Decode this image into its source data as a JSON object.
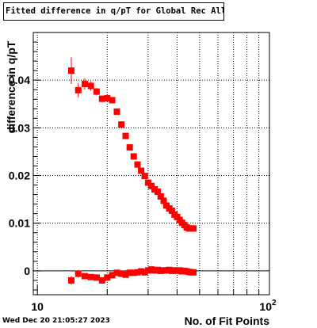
{
  "title": "Fitted difference in q/pT  for Global Rec All NoHits",
  "timestamp": "Wed Dec 20 21:05:27 2023",
  "chart_data": {
    "type": "scatter",
    "title": "Fitted difference in q/pT  for Global Rec All NoHits",
    "xlabel": "No. of Fit Points",
    "ylabel": "difference in q/pT",
    "x_scale": "log",
    "xlim": [
      9.6,
      100
    ],
    "ylim": [
      -0.005,
      0.05
    ],
    "x_tick_labels": [
      "10",
      "10^2"
    ],
    "y_tick_labels": [
      "0",
      "0.01",
      "0.02",
      "0.03",
      "0.04"
    ],
    "y_ticks": [
      0,
      0.01,
      0.02,
      0.03,
      0.04
    ],
    "grid": true,
    "legend": "none",
    "marker_color": "#ff0000",
    "series": [
      {
        "x": [
          14,
          15,
          16,
          17,
          18,
          19,
          20,
          21,
          22,
          23,
          24,
          25,
          26,
          27,
          28,
          29,
          30,
          31,
          32,
          33,
          34,
          35,
          36,
          37,
          38,
          39,
          40,
          41,
          42,
          43,
          44,
          45,
          46,
          47
        ],
        "y": [
          0.042,
          0.0379,
          0.0392,
          0.0388,
          0.0376,
          0.0361,
          0.0362,
          0.0358,
          0.0334,
          0.0307,
          0.0283,
          0.0259,
          0.024,
          0.0223,
          0.021,
          0.0199,
          0.0185,
          0.0178,
          0.0171,
          0.0166,
          0.0156,
          0.0147,
          0.0137,
          0.0131,
          0.0126,
          0.0118,
          0.0113,
          0.0107,
          0.0101,
          0.0096,
          0.0091,
          0.0089,
          0.0089,
          0.0089
        ],
        "yerr": [
          0.0028,
          0.0015,
          0.0012,
          0.001,
          0.0008,
          0.0007,
          0.0006,
          0.0005,
          0.0004,
          0.0004,
          0.0003,
          0.0003,
          0.0003,
          0.0003,
          0.0003,
          0.0003,
          0.0003,
          0.0003,
          0.0003,
          0.0003,
          0.0003,
          0.0003,
          0.0003,
          0.0003,
          0.0003,
          0.0003,
          0.0003,
          0.0003,
          0.0003,
          0.0003,
          0.0003,
          0.0003,
          0.0003,
          0.0003
        ]
      },
      {
        "x": [
          14,
          15,
          16,
          17,
          18,
          19,
          20,
          21,
          22,
          23,
          24,
          25,
          26,
          27,
          28,
          29,
          30,
          31,
          32,
          33,
          34,
          35,
          36,
          37,
          38,
          39,
          40,
          41,
          42,
          43,
          44,
          45,
          46,
          47
        ],
        "y": [
          -0.002,
          -0.0006,
          -0.0011,
          -0.0013,
          -0.0014,
          -0.002,
          -0.0014,
          -0.0009,
          -0.0004,
          -0.0006,
          -0.0008,
          -0.0004,
          -0.0004,
          -0.0003,
          -0.0001,
          -0.0003,
          0.0001,
          0.0003,
          0.0001,
          0.0002,
          0.0,
          0.0001,
          0.0001,
          0.0002,
          0.0,
          0.0001,
          0.0,
          0.0001,
          -0.0001,
          0.0,
          -0.0001,
          -0.0002,
          -0.0003,
          -0.0003
        ],
        "yerr": [
          0.0009,
          0.0008,
          0.0006,
          0.0005,
          0.0005,
          0.0005,
          0.0004,
          0.0004,
          0.0003,
          0.0003,
          0.0003,
          0.0003,
          0.0003,
          0.0003,
          0.0003,
          0.0003,
          0.0003,
          0.0003,
          0.0003,
          0.0003,
          0.0003,
          0.0003,
          0.0003,
          0.0003,
          0.0003,
          0.0003,
          0.0003,
          0.0003,
          0.0003,
          0.0003,
          0.0003,
          0.0003,
          0.0003,
          0.0003
        ]
      }
    ]
  }
}
